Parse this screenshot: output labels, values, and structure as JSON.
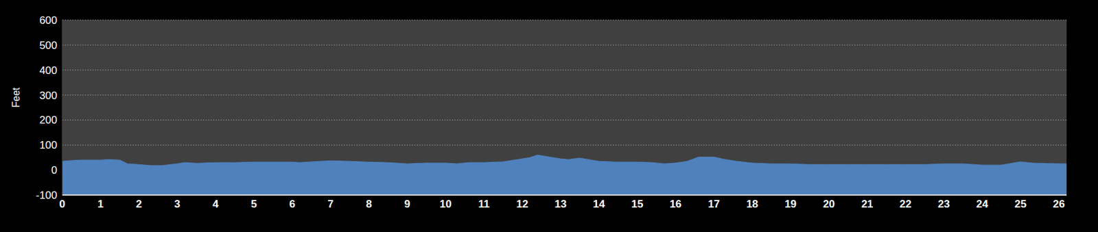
{
  "chart_data": {
    "type": "area",
    "y_label": "Feet",
    "x": [
      0,
      0.25,
      0.5,
      1.0,
      1.2,
      1.5,
      1.7,
      2.0,
      2.3,
      2.6,
      3.0,
      3.2,
      3.5,
      4.0,
      4.5,
      5.0,
      5.5,
      6.0,
      6.2,
      6.5,
      7.0,
      7.5,
      8.0,
      8.5,
      9.0,
      9.5,
      10.0,
      10.3,
      10.6,
      11.0,
      11.5,
      12.0,
      12.2,
      12.4,
      12.6,
      13.0,
      13.2,
      13.5,
      13.8,
      14.0,
      14.5,
      15.0,
      15.4,
      15.7,
      16.0,
      16.3,
      16.6,
      17.0,
      17.3,
      17.6,
      18.0,
      18.5,
      19.0,
      19.5,
      20.0,
      20.5,
      21.0,
      21.5,
      22.0,
      22.5,
      23.0,
      23.5,
      24.0,
      24.5,
      24.8,
      25.0,
      25.3,
      25.7,
      26.2
    ],
    "values": [
      35,
      38,
      40,
      40,
      42,
      40,
      25,
      22,
      18,
      18,
      25,
      30,
      27,
      30,
      30,
      32,
      32,
      32,
      30,
      33,
      37,
      35,
      32,
      30,
      25,
      28,
      28,
      25,
      30,
      30,
      33,
      45,
      50,
      60,
      55,
      45,
      42,
      48,
      40,
      35,
      32,
      32,
      30,
      25,
      28,
      35,
      52,
      52,
      42,
      35,
      28,
      25,
      25,
      22,
      22,
      22,
      22,
      22,
      22,
      22,
      25,
      25,
      20,
      20,
      28,
      33,
      28,
      26,
      25
    ],
    "color": "#4f81bd",
    "xlim": [
      0,
      26.2
    ],
    "ylim": [
      -100,
      600
    ],
    "xticks": [
      0,
      1,
      2,
      3,
      4,
      5,
      6,
      7,
      8,
      9,
      10,
      11,
      12,
      13,
      14,
      15,
      16,
      17,
      18,
      19,
      20,
      21,
      22,
      23,
      24,
      25,
      26
    ],
    "yticks": [
      -100,
      0,
      100,
      200,
      300,
      400,
      500,
      600
    ],
    "grid": true
  }
}
